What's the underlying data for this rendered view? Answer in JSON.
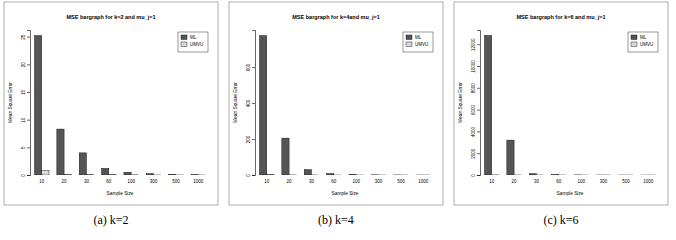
{
  "chart_data": [
    {
      "type": "bar",
      "title": "MSE bargraph for k=2 and mu_j=1",
      "caption": "(a) k=2",
      "x_label": "Sample Size",
      "y_label": "Mean Square Error",
      "categories": [
        "10",
        "20",
        "30",
        "60",
        "100",
        "300",
        "500",
        "1000"
      ],
      "series": [
        {
          "name": "ML",
          "color": "#555555",
          "values": [
            25.2,
            8.3,
            4.0,
            1.2,
            0.5,
            0.25,
            0.1,
            0.05
          ]
        },
        {
          "name": "UMVU",
          "color": "#d9d9d9",
          "values": [
            0.8,
            0.15,
            0.1,
            0.05,
            0.03,
            0.01,
            0.01,
            0.005
          ]
        }
      ],
      "ylim": [
        0,
        26.2
      ],
      "yticks": [
        0,
        5,
        10,
        15,
        20,
        25
      ],
      "legend": "top-right"
    },
    {
      "type": "bar",
      "title": "MSE bargraph for k=4and mu_j=1",
      "caption": "(b) k=4",
      "x_label": "Sample Size",
      "y_label": "Mean Square Error",
      "categories": [
        "10",
        "20",
        "30",
        "60",
        "100",
        "300",
        "500",
        "1000"
      ],
      "series": [
        {
          "name": "ML",
          "color": "#555555",
          "values": [
            775,
            205,
            30,
            8,
            3,
            1,
            0.5,
            0.2
          ]
        },
        {
          "name": "UMVU",
          "color": "#d9d9d9",
          "values": [
            2,
            0.5,
            0.3,
            0.1,
            0.05,
            0.02,
            0.01,
            0.005
          ]
        }
      ],
      "ylim": [
        0,
        806
      ],
      "yticks": [
        0,
        200,
        400,
        600
      ],
      "legend": "top-right"
    },
    {
      "type": "bar",
      "title": "MSE bargraph for k=6 and mu_j=1",
      "caption": "(c) k=6",
      "x_label": "Sample Size",
      "y_label": "Mean Square Error",
      "categories": [
        "10",
        "20",
        "30",
        "60",
        "100",
        "300",
        "500",
        "1000"
      ],
      "series": [
        {
          "name": "ML",
          "color": "#555555",
          "values": [
            12800,
            3200,
            120,
            30,
            10,
            3,
            1,
            0.5
          ]
        },
        {
          "name": "UMVU",
          "color": "#d9d9d9",
          "values": [
            10,
            3,
            2,
            1,
            0.5,
            0.1,
            0.05,
            0.02
          ]
        }
      ],
      "ylim": [
        0,
        13300
      ],
      "yticks": [
        0,
        2000,
        4000,
        6000,
        8000,
        10000,
        12000
      ],
      "legend": "top-right"
    }
  ]
}
